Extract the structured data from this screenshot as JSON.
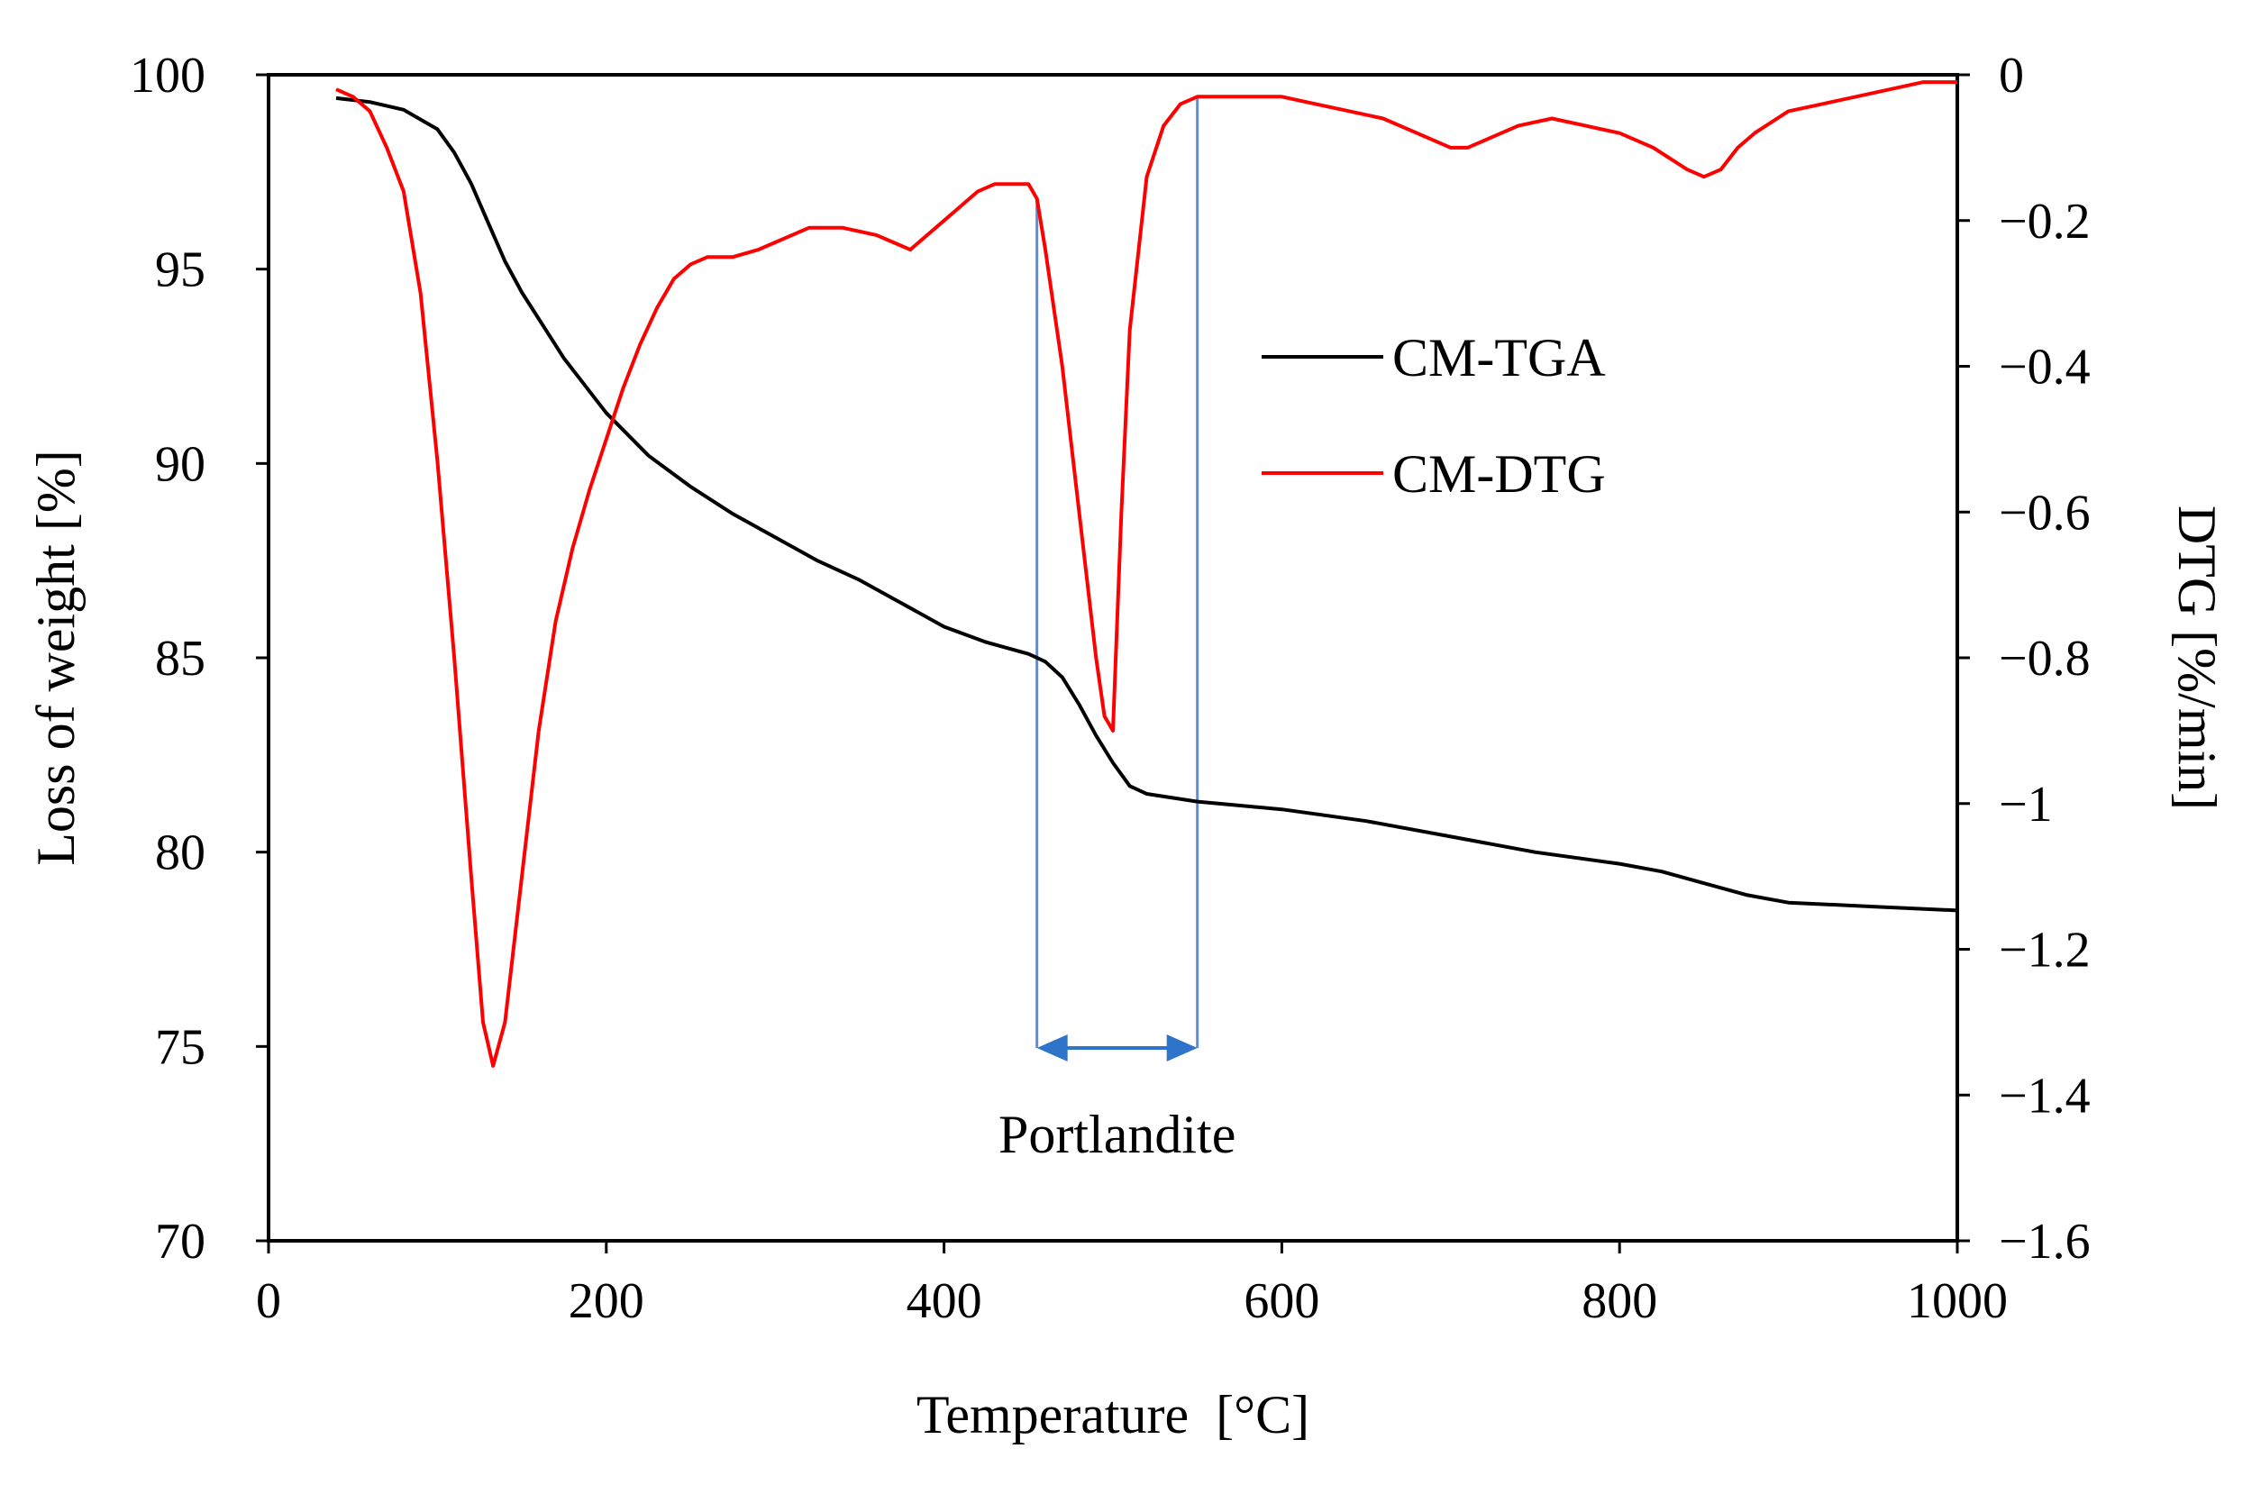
{
  "chart_data": {
    "type": "line",
    "title": "",
    "xlabel": "Temperature  [°C]",
    "ylabel": "Loss of weight [%]",
    "y2label": "DTG [%/min]",
    "xlim": [
      0,
      1000
    ],
    "ylim": [
      70,
      100
    ],
    "y2lim": [
      -1.6,
      0
    ],
    "xticks": [
      "0",
      "200",
      "400",
      "600",
      "800",
      "1000"
    ],
    "yticks": [
      "70",
      "75",
      "80",
      "85",
      "90",
      "95",
      "100"
    ],
    "y2ticks": [
      "0",
      "−0.2",
      "−0.4",
      "−0.6",
      "−0.8",
      "−1",
      "−1.2",
      "−1.4",
      "−1.6"
    ],
    "grid": false,
    "legend_position": "center-right",
    "series": [
      {
        "name": "CM-TGA",
        "axis": "left",
        "color": "#000000",
        "x": [
          40,
          60,
          80,
          100,
          110,
          120,
          130,
          140,
          150,
          175,
          200,
          225,
          250,
          275,
          300,
          325,
          350,
          375,
          400,
          425,
          450,
          460,
          470,
          480,
          490,
          500,
          510,
          520,
          550,
          600,
          650,
          700,
          750,
          800,
          825,
          850,
          875,
          900,
          950,
          1000
        ],
        "values": [
          99.4,
          99.3,
          99.1,
          98.6,
          98.0,
          97.2,
          96.2,
          95.2,
          94.4,
          92.7,
          91.3,
          90.2,
          89.4,
          88.7,
          88.1,
          87.5,
          87.0,
          86.4,
          85.8,
          85.4,
          85.1,
          84.9,
          84.5,
          83.8,
          83.0,
          82.3,
          81.7,
          81.5,
          81.3,
          81.1,
          80.8,
          80.4,
          80.0,
          79.7,
          79.5,
          79.2,
          78.9,
          78.7,
          78.6,
          78.5
        ]
      },
      {
        "name": "CM-DTG",
        "axis": "right",
        "color": "#ff0000",
        "x": [
          40,
          50,
          60,
          70,
          80,
          90,
          100,
          110,
          120,
          127,
          133,
          140,
          150,
          160,
          170,
          180,
          190,
          200,
          210,
          220,
          230,
          240,
          250,
          260,
          275,
          290,
          300,
          310,
          320,
          340,
          360,
          370,
          380,
          390,
          400,
          410,
          420,
          430,
          440,
          450,
          455,
          460,
          470,
          480,
          490,
          495,
          500,
          505,
          510,
          520,
          530,
          540,
          550,
          560,
          580,
          600,
          620,
          640,
          660,
          680,
          700,
          710,
          720,
          740,
          760,
          780,
          800,
          820,
          840,
          850,
          860,
          870,
          880,
          900,
          920,
          940,
          960,
          980,
          1000
        ],
        "values": [
          -0.02,
          -0.03,
          -0.05,
          -0.1,
          -0.16,
          -0.3,
          -0.53,
          -0.8,
          -1.1,
          -1.3,
          -1.36,
          -1.3,
          -1.1,
          -0.9,
          -0.75,
          -0.65,
          -0.57,
          -0.5,
          -0.43,
          -0.37,
          -0.32,
          -0.28,
          -0.26,
          -0.25,
          -0.25,
          -0.24,
          -0.23,
          -0.22,
          -0.21,
          -0.21,
          -0.22,
          -0.23,
          -0.24,
          -0.22,
          -0.2,
          -0.18,
          -0.16,
          -0.15,
          -0.15,
          -0.15,
          -0.17,
          -0.24,
          -0.4,
          -0.6,
          -0.8,
          -0.88,
          -0.9,
          -0.6,
          -0.35,
          -0.14,
          -0.07,
          -0.04,
          -0.03,
          -0.03,
          -0.03,
          -0.03,
          -0.04,
          -0.05,
          -0.06,
          -0.08,
          -0.1,
          -0.1,
          -0.09,
          -0.07,
          -0.06,
          -0.07,
          -0.08,
          -0.1,
          -0.13,
          -0.14,
          -0.13,
          -0.1,
          -0.08,
          -0.05,
          -0.04,
          -0.03,
          -0.02,
          -0.01,
          -0.01
        ]
      }
    ],
    "annotation": {
      "text": "Portlandite",
      "x_start": 455,
      "x_end": 550,
      "line_color": "#5b8fd8",
      "arrow_color": "#2e74c8"
    }
  }
}
